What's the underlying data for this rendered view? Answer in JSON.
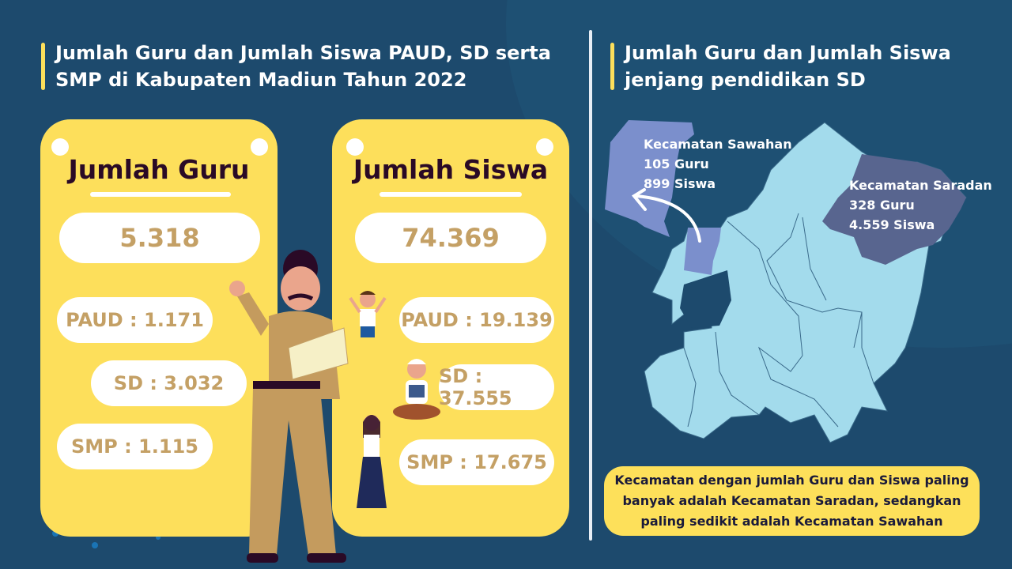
{
  "left_title": "Jumlah Guru dan Jumlah Siswa PAUD, SD serta SMP di Kabupaten Madiun Tahun 2022",
  "right_title": "Jumlah Guru dan Jumlah Siswa jenjang pendidikan SD",
  "guru": {
    "title": "Jumlah Guru",
    "total": "5.318",
    "paud": "PAUD : 1.171",
    "sd": "SD : 3.032",
    "smp": "SMP : 1.115"
  },
  "siswa": {
    "title": "Jumlah Siswa",
    "total": "74.369",
    "paud": "PAUD : 19.139",
    "sd": "SD : 37.555",
    "smp": "SMP : 17.675"
  },
  "map": {
    "sawahan": {
      "name": "Kecamatan Sawahan",
      "guru": "105 Guru",
      "siswa": "899 Siswa",
      "color": "#7b8fcc"
    },
    "saradan": {
      "name": "Kecamatan Saradan",
      "guru": "328 Guru",
      "siswa": "4.559 Siswa",
      "color": "#58658f"
    },
    "region_color": "#a3dbec"
  },
  "conclusion": "Kecamatan dengan jumlah Guru dan Siswa paling banyak adalah Kecamatan Saradan, sedangkan paling sedikit adalah Kecamatan Sawahan",
  "colors": {
    "background": "#1d4a6d",
    "card": "#fddf5b",
    "value": "#c4a065",
    "accent": "#fddf5b"
  }
}
